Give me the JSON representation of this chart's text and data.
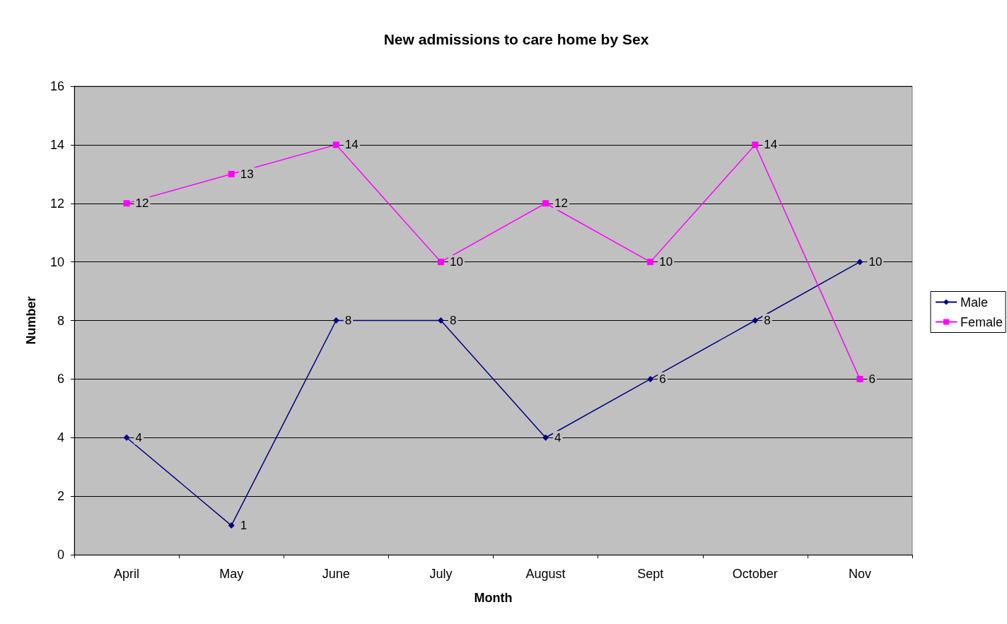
{
  "chart_data": {
    "type": "line",
    "title": "New admissions to care home by Sex",
    "xlabel": "Month",
    "ylabel": "Number",
    "categories": [
      "April",
      "May",
      "June",
      "July",
      "August",
      "Sept",
      "October",
      "Nov"
    ],
    "series": [
      {
        "name": "Male",
        "color": "#000080",
        "marker": "diamond",
        "values": [
          4,
          1,
          8,
          8,
          4,
          6,
          8,
          10
        ]
      },
      {
        "name": "Female",
        "color": "#ff00ff",
        "marker": "square",
        "values": [
          12,
          13,
          14,
          10,
          12,
          10,
          14,
          6
        ]
      }
    ],
    "ylim": [
      0,
      16
    ],
    "yticks": [
      0,
      2,
      4,
      6,
      8,
      10,
      12,
      14,
      16
    ],
    "grid": "y",
    "legend": "right",
    "data_labels": true,
    "line_style": "solid"
  }
}
